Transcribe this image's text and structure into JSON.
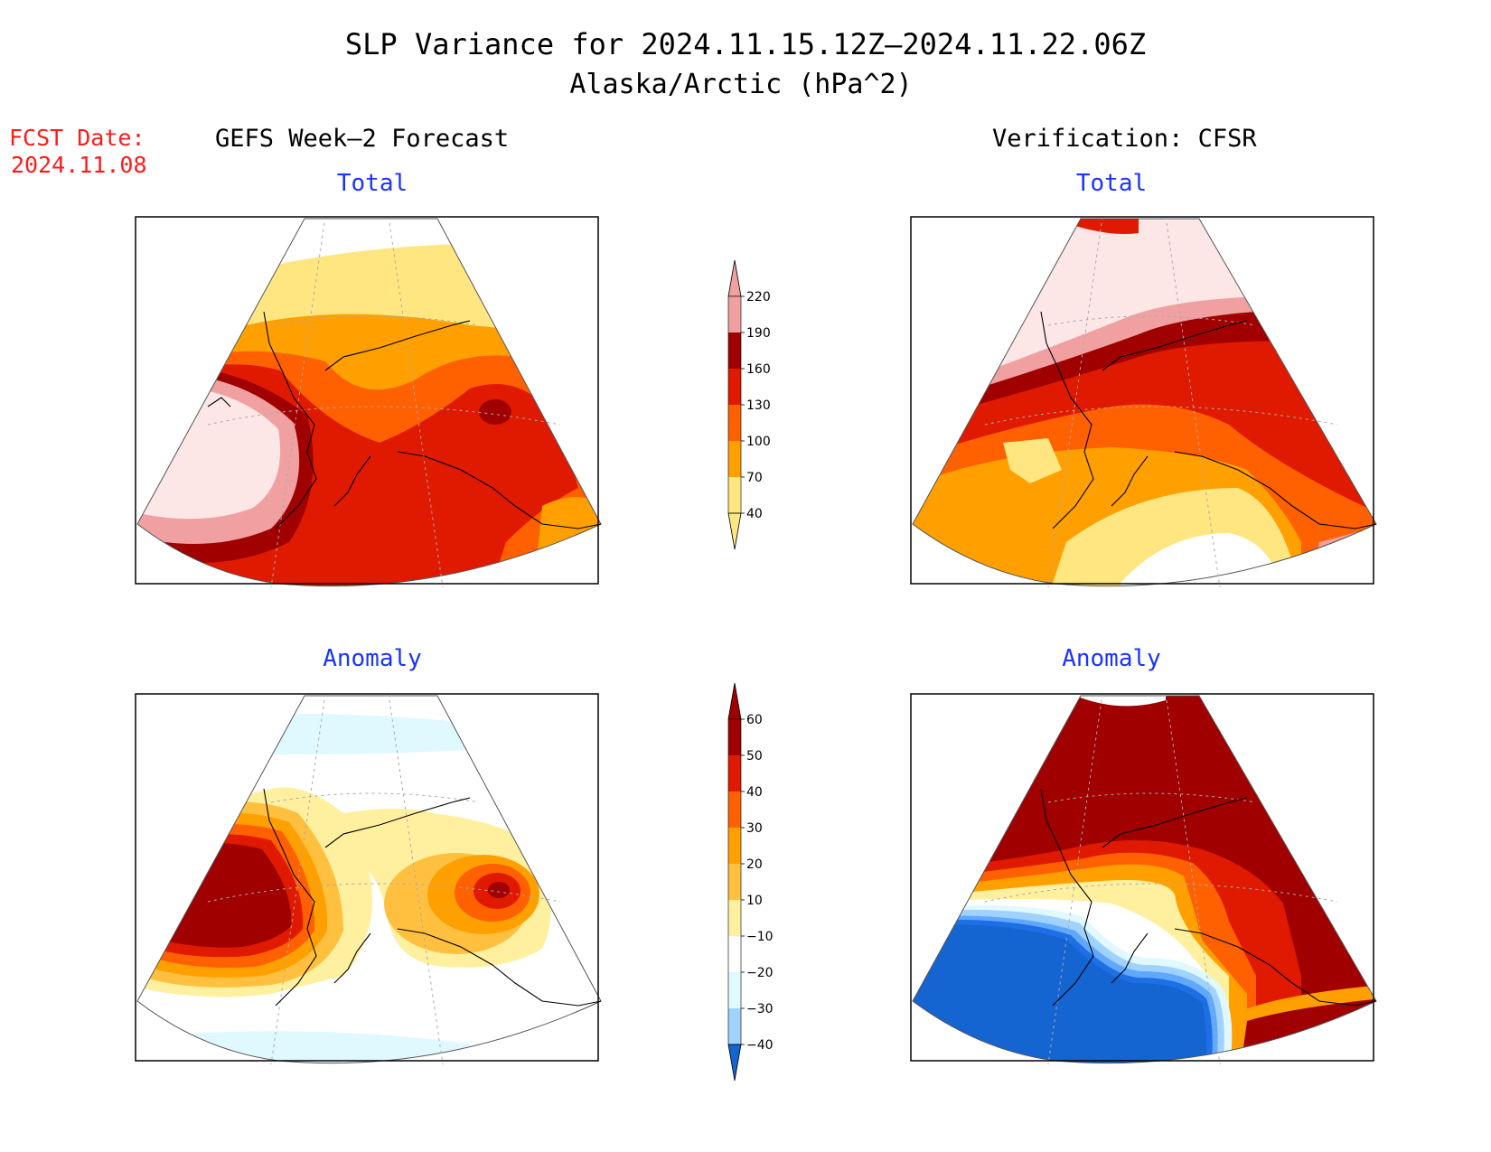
{
  "title": "SLP Variance for 2024.11.15.12Z–2024.11.22.06Z",
  "subtitle": "Alaska/Arctic (hPa^2)",
  "fcst_date": {
    "label": "FCST Date:",
    "value": "2024.11.08"
  },
  "columns": {
    "left": "GEFS Week–2 Forecast",
    "right": "Verification: CFSR"
  },
  "panels": {
    "top_left": "Total",
    "top_right": "Total",
    "bottom_left": "Anomaly",
    "bottom_right": "Anomaly"
  },
  "colorbars": {
    "total": {
      "labels": [
        "220",
        "190",
        "160",
        "130",
        "100",
        "70",
        "40"
      ],
      "colors": [
        "#f0a0a0",
        "#a00000",
        "#e01a00",
        "#ff6000",
        "#ffa000",
        "#ffe680"
      ]
    },
    "anomaly": {
      "labels": [
        "60",
        "50",
        "40",
        "30",
        "20",
        "10",
        "−10",
        "−20",
        "−30",
        "−40"
      ],
      "colors": [
        "#a00000",
        "#e01a00",
        "#ff6000",
        "#ffa000",
        "#ffc040",
        "#fff0a0",
        "#ffffff",
        "#e0f8ff",
        "#a0d2ff",
        "#60a8ff",
        "#1e6ee6",
        "#1464d2"
      ]
    }
  },
  "colors": {
    "title": "#000000",
    "fcst": "#ff1a1a",
    "panel_subtitle": "#1a33ff"
  }
}
